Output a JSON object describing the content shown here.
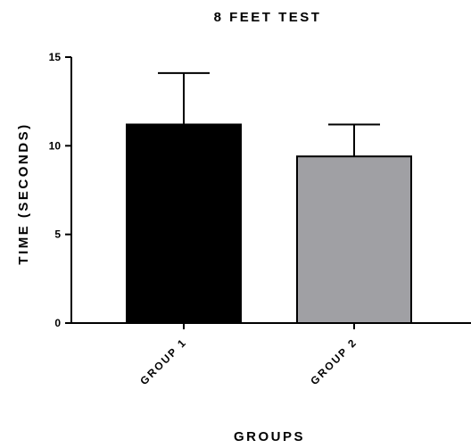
{
  "chart_data": {
    "type": "bar",
    "title": "8 FEET TEST",
    "xlabel": "GROUPS",
    "ylabel": "TIME (SECONDS)",
    "categories": [
      "GROUP 1",
      "GROUP 2"
    ],
    "values": [
      11.2,
      9.4
    ],
    "error_upper": [
      2.9,
      1.8
    ],
    "colors": [
      "#000000",
      "#a0a0a4"
    ],
    "yticks": [
      "0",
      "5",
      "10",
      "15"
    ],
    "ytick_values": [
      0,
      5,
      10,
      15
    ],
    "ylim": [
      0,
      15
    ],
    "grid": false,
    "legend": "none"
  }
}
